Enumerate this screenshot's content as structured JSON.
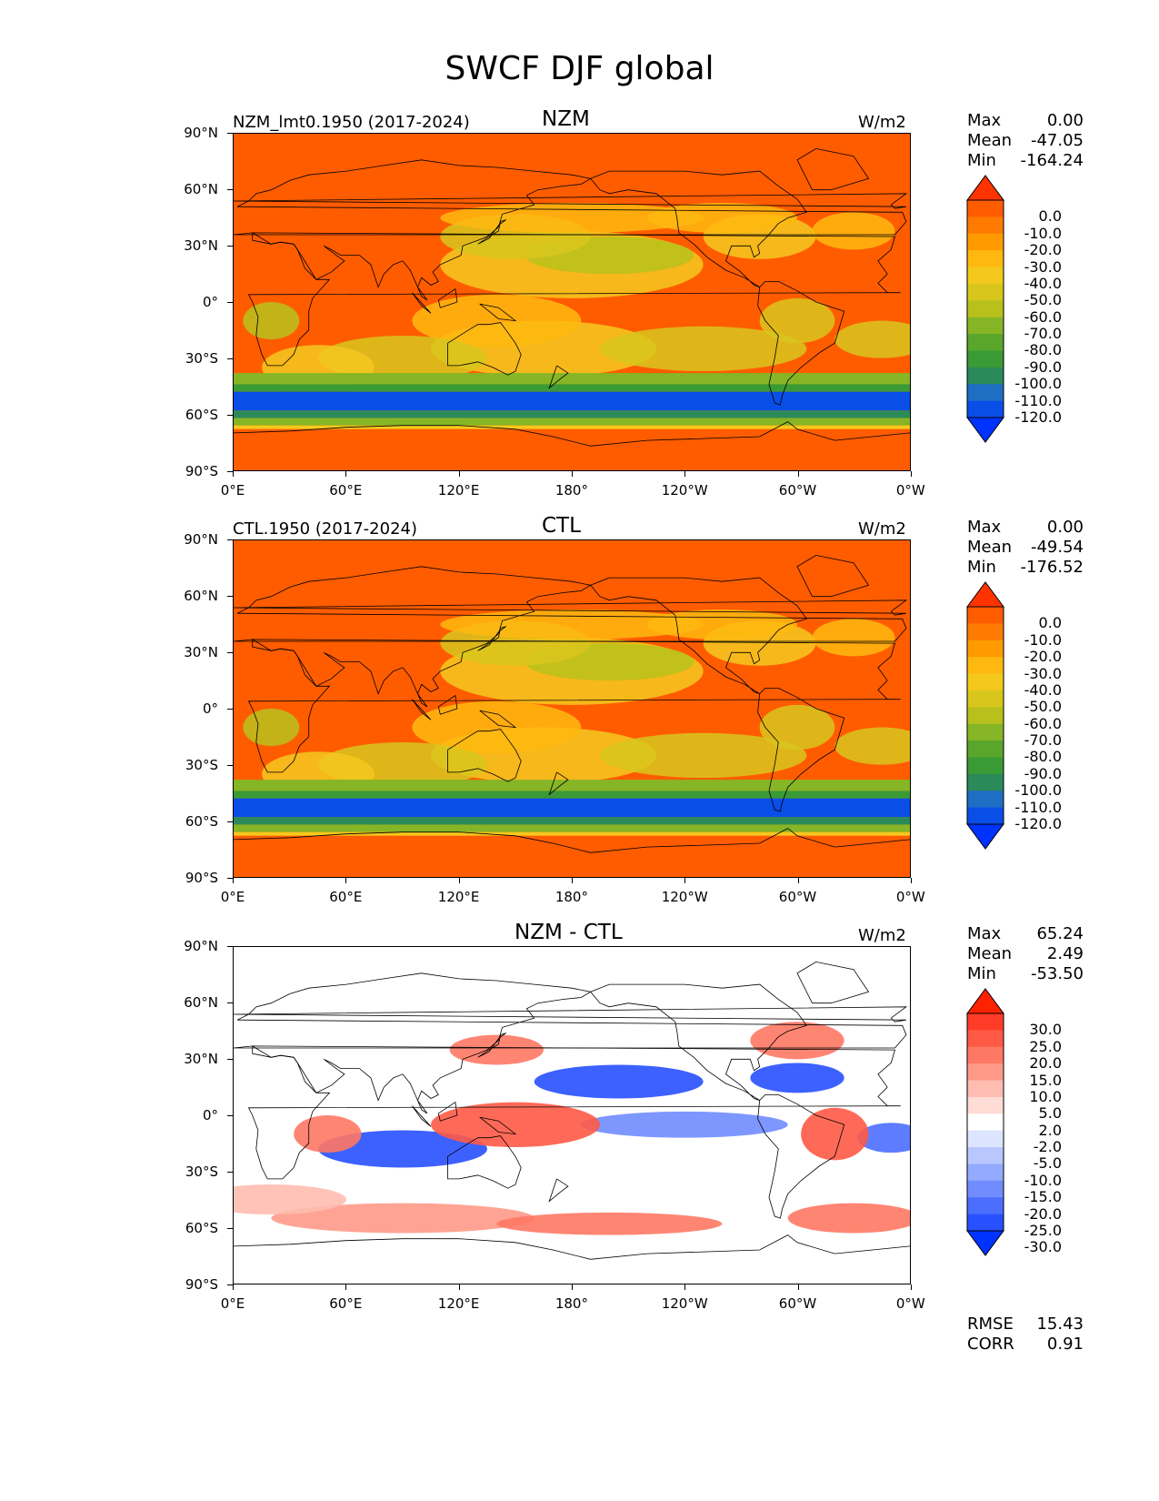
{
  "figure_title": "SWCF DJF global",
  "lat_labels": [
    "90°N",
    "60°N",
    "30°N",
    "0°",
    "30°S",
    "60°S",
    "90°S"
  ],
  "lon_labels": [
    "0°E",
    "60°E",
    "120°E",
    "180°",
    "120°W",
    "60°W",
    "0°W"
  ],
  "panels": [
    {
      "title": "NZM",
      "left_label": "NZM_lmt0.1950 (2017-2024)",
      "units": "W/m2",
      "stats": {
        "max_label": "Max",
        "max": "0.00",
        "mean_label": "Mean",
        "mean": "-47.05",
        "min_label": "Min",
        "min": "-164.24"
      },
      "colorbar": {
        "labels": [
          "0.0",
          "-10.0",
          "-20.0",
          "-30.0",
          "-40.0",
          "-50.0",
          "-60.0",
          "-70.0",
          "-80.0",
          "-90.0",
          "-100.0",
          "-110.0",
          "-120.0"
        ],
        "colors": [
          "#ff3300",
          "#ff5c00",
          "#ff7a00",
          "#ff9b00",
          "#ffb810",
          "#f5c81e",
          "#d8c61d",
          "#b8c11c",
          "#86b526",
          "#5aa62c",
          "#3a9a35",
          "#2a8a5a",
          "#1e6ec4",
          "#0a4ee8",
          "#0033ff"
        ]
      }
    },
    {
      "title": "CTL",
      "left_label": "CTL.1950 (2017-2024)",
      "units": "W/m2",
      "stats": {
        "max_label": "Max",
        "max": "0.00",
        "mean_label": "Mean",
        "mean": "-49.54",
        "min_label": "Min",
        "min": "-176.52"
      },
      "colorbar": {
        "labels": [
          "0.0",
          "-10.0",
          "-20.0",
          "-30.0",
          "-40.0",
          "-50.0",
          "-60.0",
          "-70.0",
          "-80.0",
          "-90.0",
          "-100.0",
          "-110.0",
          "-120.0"
        ],
        "colors": [
          "#ff3300",
          "#ff5c00",
          "#ff7a00",
          "#ff9b00",
          "#ffb810",
          "#f5c81e",
          "#d8c61d",
          "#b8c11c",
          "#86b526",
          "#5aa62c",
          "#3a9a35",
          "#2a8a5a",
          "#1e6ec4",
          "#0a4ee8",
          "#0033ff"
        ]
      }
    },
    {
      "title": "NZM - CTL",
      "left_label": "",
      "units": "W/m2",
      "stats": {
        "max_label": "Max",
        "max": "65.24",
        "mean_label": "Mean",
        "mean": "2.49",
        "min_label": "Min",
        "min": "-53.50"
      },
      "colorbar": {
        "labels": [
          "30.0",
          "25.0",
          "20.0",
          "15.0",
          "10.0",
          "5.0",
          "2.0",
          "-2.0",
          "-5.0",
          "-10.0",
          "-15.0",
          "-20.0",
          "-25.0",
          "-30.0"
        ],
        "colors": [
          "#ff2200",
          "#ff3c28",
          "#ff5a46",
          "#ff7864",
          "#ff9a88",
          "#ffbcb0",
          "#ffdcd6",
          "#ffffff",
          "#dce4ff",
          "#b8c8ff",
          "#94aaff",
          "#708cff",
          "#4c6eff",
          "#2850ff",
          "#0033ff"
        ]
      }
    }
  ],
  "footer": {
    "rmse_label": "RMSE",
    "rmse": "15.43",
    "corr_label": "CORR",
    "corr": "0.91"
  }
}
